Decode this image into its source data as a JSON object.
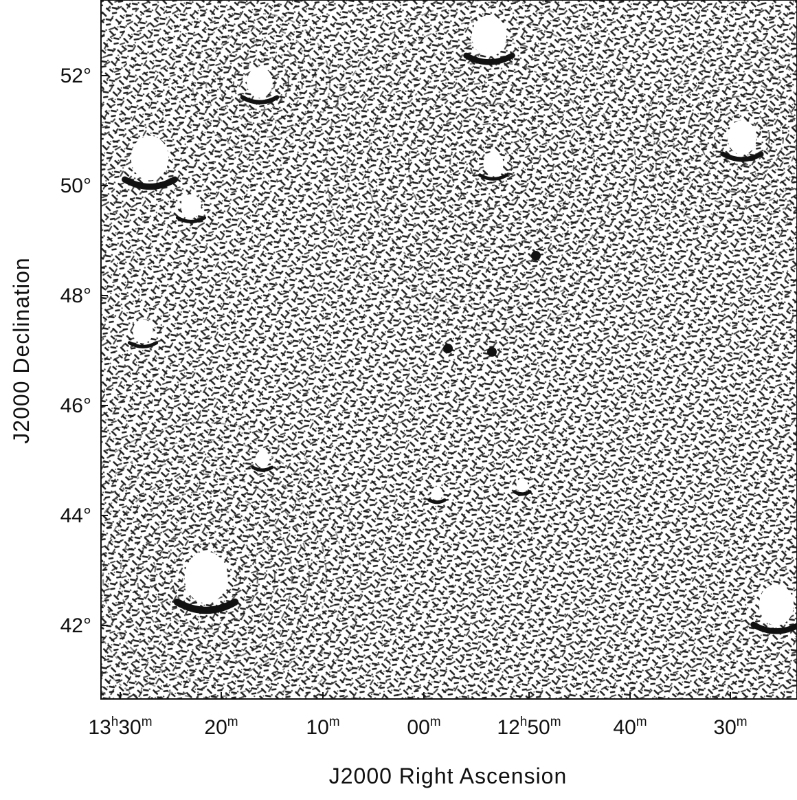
{
  "figure": {
    "x_axis": {
      "title": "J2000 Right Ascension",
      "ticks": [
        {
          "h": "13",
          "m": "30"
        },
        {
          "h": "",
          "m": "20"
        },
        {
          "h": "",
          "m": "10"
        },
        {
          "h": "",
          "m": "00"
        },
        {
          "h": "12",
          "m": "50"
        },
        {
          "h": "",
          "m": "40"
        },
        {
          "h": "",
          "m": "30"
        }
      ]
    },
    "y_axis": {
      "title": "J2000 Declination",
      "ticks": [
        "52°",
        "50°",
        "48°",
        "46°",
        "44°",
        "42°"
      ]
    },
    "image": {
      "description_type": "radio-interferometric sky map",
      "colormap": "grayscale-inverted",
      "background": "#ffffff",
      "foreground": "#111111"
    }
  }
}
